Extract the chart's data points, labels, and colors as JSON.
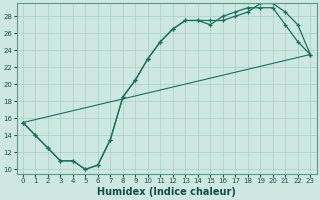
{
  "xlabel": "Humidex (Indice chaleur)",
  "bg_color": "#cce8e0",
  "grid_color": "#aaccC4",
  "line_color": "#1a7060",
  "xlim": [
    -0.5,
    23.5
  ],
  "ylim": [
    9.5,
    29.5
  ],
  "xticks": [
    0,
    1,
    2,
    3,
    4,
    5,
    6,
    7,
    8,
    9,
    10,
    11,
    12,
    13,
    14,
    15,
    16,
    17,
    18,
    19,
    20,
    21,
    22,
    23
  ],
  "yticks": [
    10,
    12,
    14,
    16,
    18,
    20,
    22,
    24,
    26,
    28
  ],
  "line1_x": [
    0,
    1,
    2,
    3,
    4,
    5,
    6,
    7,
    8,
    9,
    10,
    11,
    12,
    13,
    14,
    15,
    16,
    17,
    18,
    19,
    20,
    21,
    22,
    23
  ],
  "line1_y": [
    15.5,
    14.0,
    12.5,
    11.0,
    11.0,
    10.0,
    10.5,
    13.5,
    18.5,
    20.5,
    23.0,
    25.0,
    26.5,
    27.5,
    27.5,
    27.5,
    27.5,
    28.0,
    28.5,
    29.5,
    29.5,
    28.5,
    27.0,
    23.5
  ],
  "line2_x": [
    0,
    1,
    2,
    3,
    4,
    5,
    6,
    7,
    8,
    9,
    10,
    11,
    12,
    13,
    14,
    15,
    16,
    17,
    18,
    19,
    20,
    21,
    22,
    23
  ],
  "line2_y": [
    15.5,
    14.0,
    12.5,
    11.0,
    11.0,
    10.0,
    10.5,
    13.5,
    18.5,
    20.5,
    23.0,
    25.0,
    26.5,
    27.5,
    27.5,
    27.0,
    28.0,
    28.5,
    29.0,
    29.0,
    29.0,
    27.0,
    25.0,
    23.5
  ],
  "line3_x": [
    0,
    23
  ],
  "line3_y": [
    15.5,
    23.5
  ],
  "xlabel_fontsize": 7,
  "tick_fontsize": 5
}
